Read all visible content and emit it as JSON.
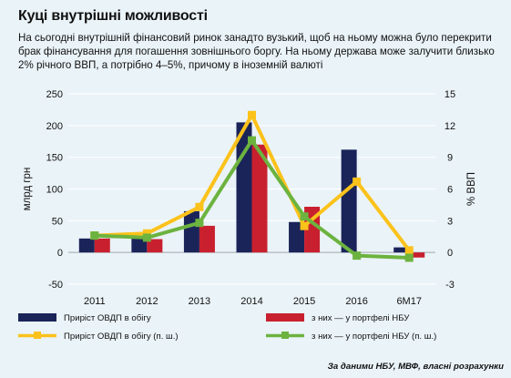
{
  "title": "Куці внутрішні можливості",
  "subtitle": "На сьогодні внутрішній фінансовий ринок занадто вузький, щоб на ньому можна було перекрити брак фінансування для погашення зовнішнього боргу. На ньому держава може залучити близько 2% річного ВВП, а потрібно 4–5%, причому в іноземній валюті",
  "source": "За даними НБУ, МВФ, власні розрахунки",
  "colors": {
    "background": "#eaf3f8",
    "bar_navy": "#1a2459",
    "bar_red": "#c8202f",
    "line_yellow": "#fbc21b",
    "line_green": "#6cb33f",
    "grid": "#ffffff"
  },
  "chart_data": {
    "type": "bar",
    "categories": [
      "2011",
      "2012",
      "2013",
      "2014",
      "2015",
      "2016",
      "6М17"
    ],
    "ylabel": "млрд грн",
    "y2label": "% ВВП",
    "ylim": [
      -50,
      250
    ],
    "y2lim": [
      -3,
      15
    ],
    "yticks": [
      -50,
      0,
      50,
      100,
      150,
      200,
      250
    ],
    "y2ticks": [
      -3,
      0,
      3,
      6,
      9,
      12,
      15
    ],
    "grid": true,
    "legend_position": "bottom",
    "series": [
      {
        "name": "Приріст ОВДП в обігу",
        "type": "bar",
        "axis": "left",
        "color": "#1a2459",
        "values": [
          22,
          22,
          65,
          205,
          48,
          162,
          8
        ]
      },
      {
        "name": "з них — у портфелі НБУ",
        "type": "bar",
        "axis": "left",
        "color": "#c8202f",
        "values": [
          22,
          21,
          42,
          170,
          72,
          0,
          -8
        ]
      },
      {
        "name": "Приріст ОВДП в обігу (п. ш.)",
        "type": "line",
        "axis": "right",
        "color": "#fbc21b",
        "values": [
          1.6,
          1.8,
          4.3,
          13.0,
          2.5,
          6.7,
          0.2
        ]
      },
      {
        "name": "з них — у портфелі НБУ (п. ш.)",
        "type": "line",
        "axis": "right",
        "color": "#6cb33f",
        "values": [
          1.6,
          1.4,
          2.8,
          10.6,
          3.4,
          -0.3,
          -0.5
        ]
      }
    ]
  }
}
